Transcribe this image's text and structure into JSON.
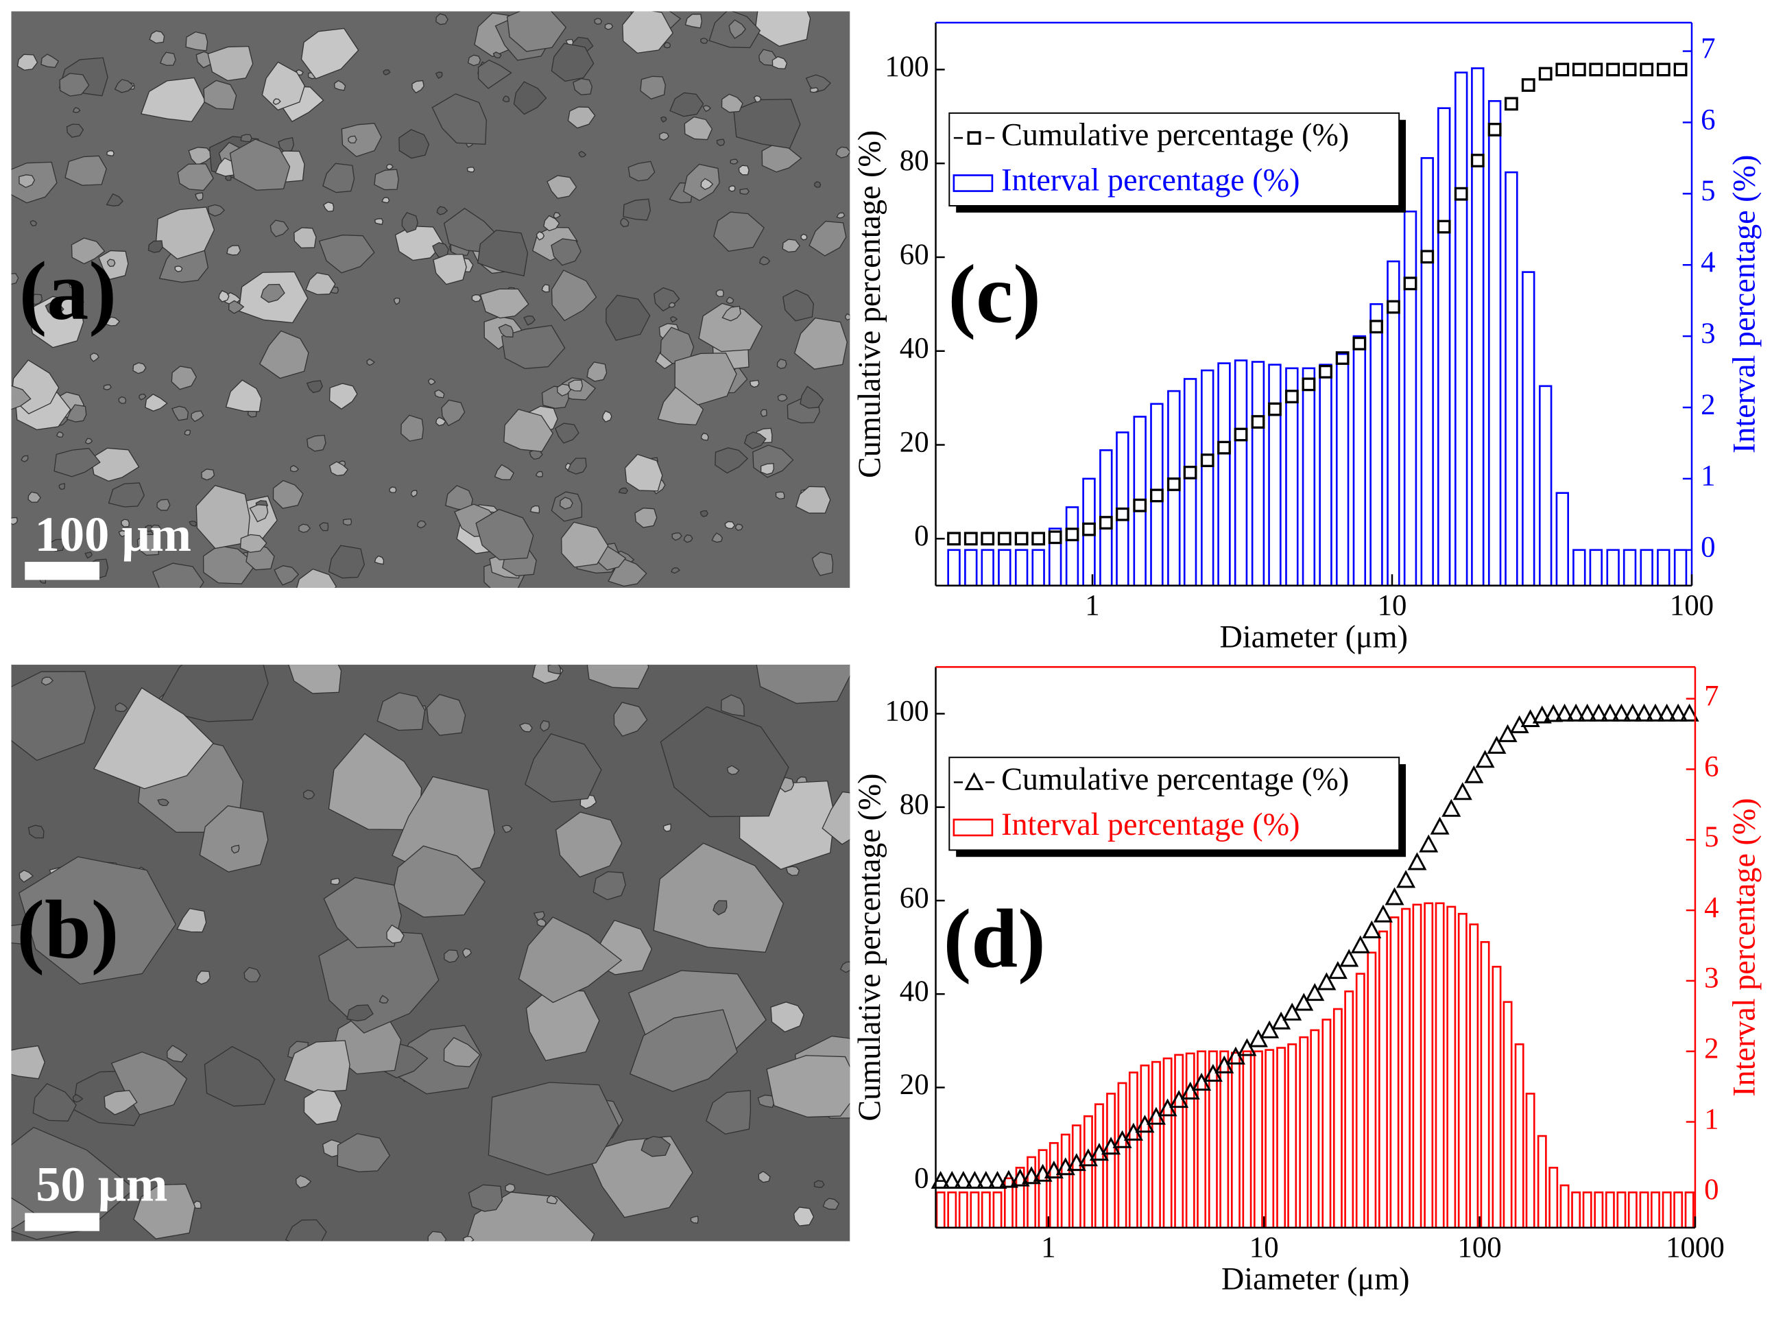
{
  "images": [
    {
      "label": "(a)",
      "scale_bar": "100 μm"
    },
    {
      "label": "(b)",
      "scale_bar": "50 μm"
    }
  ],
  "chart_data": [
    {
      "type": "bar",
      "annotations": [
        "(c)"
      ],
      "xlabel": "Diameter (μm)",
      "ylabel": "Cumulative percentage (%)",
      "y2label": "Interval percentage (%)",
      "xscale": "log",
      "xlim": [
        0.3,
        100
      ],
      "xticks": [
        1,
        10,
        100
      ],
      "ylim": [
        -10,
        110
      ],
      "yticks": [
        0,
        20,
        40,
        60,
        80,
        100
      ],
      "y2lim": [
        -0.5,
        7.4
      ],
      "y2ticks": [
        0,
        1,
        2,
        3,
        4,
        5,
        6,
        7
      ],
      "grid": false,
      "legend": "upper left",
      "x": [
        0.345,
        0.393,
        0.447,
        0.509,
        0.58,
        0.66,
        0.751,
        0.856,
        0.974,
        1.11,
        1.26,
        1.44,
        1.64,
        1.87,
        2.12,
        2.42,
        2.75,
        3.13,
        3.57,
        4.06,
        4.63,
        5.27,
        6.0,
        6.83,
        7.78,
        8.86,
        10.1,
        11.5,
        13.1,
        14.9,
        17.0,
        19.3,
        22.0,
        25.0,
        28.5,
        32.5,
        37.0,
        42.1,
        47.9,
        54.6,
        62.1,
        70.7,
        80.5,
        91.7
      ],
      "series": [
        {
          "name": "Cumulative percentage (%)",
          "type": "scatter",
          "marker": "square",
          "color": "#000000",
          "values": [
            0,
            0,
            0,
            0,
            0,
            0,
            0.3,
            0.9,
            2.0,
            3.4,
            5.2,
            7.1,
            9.2,
            11.6,
            14.1,
            16.7,
            19.4,
            22.2,
            24.9,
            27.6,
            30.3,
            32.9,
            35.6,
            38.5,
            41.6,
            45.2,
            49.4,
            54.4,
            60.1,
            66.5,
            73.5,
            80.6,
            87.2,
            92.7,
            96.7,
            99.1,
            100,
            100,
            100,
            100,
            100,
            100,
            100,
            100
          ]
        },
        {
          "name": "Interval percentage (%)",
          "type": "bar",
          "axis": "y2",
          "color": "#0000ff",
          "values": [
            0,
            0,
            0,
            0,
            0,
            0,
            0.3,
            0.6,
            1.0,
            1.4,
            1.65,
            1.87,
            2.05,
            2.23,
            2.4,
            2.52,
            2.62,
            2.66,
            2.64,
            2.6,
            2.55,
            2.55,
            2.6,
            2.75,
            3.0,
            3.45,
            4.05,
            4.75,
            5.5,
            6.2,
            6.7,
            6.76,
            6.3,
            5.3,
            3.9,
            2.3,
            0.8,
            0,
            0,
            0,
            0,
            0,
            0,
            0
          ]
        }
      ]
    },
    {
      "type": "bar",
      "annotations": [
        "(d)"
      ],
      "xlabel": "Diameter (μm)",
      "ylabel": "Cumulative percentage (%)",
      "y2label": "Interval percentage (%)",
      "xscale": "log",
      "xlim": [
        0.3,
        1000
      ],
      "xticks": [
        1,
        10,
        100,
        1000
      ],
      "ylim": [
        -10,
        110
      ],
      "yticks": [
        0,
        20,
        40,
        60,
        80,
        100
      ],
      "y2lim": [
        -0.5,
        7.45
      ],
      "y2ticks": [
        0,
        1,
        2,
        3,
        4,
        5,
        6,
        7
      ],
      "grid": false,
      "legend": "upper left",
      "x": [
        0.316,
        0.357,
        0.403,
        0.455,
        0.513,
        0.58,
        0.654,
        0.739,
        0.834,
        0.941,
        1.06,
        1.2,
        1.35,
        1.53,
        1.72,
        1.95,
        2.2,
        2.48,
        2.8,
        3.16,
        3.57,
        4.03,
        4.55,
        5.13,
        5.8,
        6.54,
        7.39,
        8.34,
        9.41,
        10.6,
        12.0,
        13.5,
        15.3,
        17.2,
        19.5,
        22.0,
        24.8,
        28.0,
        31.6,
        35.7,
        40.3,
        45.5,
        51.3,
        58.0,
        65.4,
        73.9,
        83.4,
        94.1,
        106,
        120,
        135,
        153,
        172,
        195,
        220,
        248,
        280,
        316,
        357,
        403,
        455,
        513,
        580,
        654,
        739,
        834,
        941
      ],
      "series": [
        {
          "name": "Cumulative percentage (%)",
          "type": "scatter",
          "marker": "triangle",
          "color": "#000000",
          "values": [
            0,
            0,
            0,
            0,
            0,
            0,
            0.2,
            0.5,
            1.0,
            1.5,
            2.2,
            2.9,
            3.8,
            4.8,
            6.0,
            7.3,
            8.7,
            10.3,
            12.0,
            13.7,
            15.5,
            17.3,
            19.1,
            21.0,
            22.9,
            24.7,
            26.6,
            28.4,
            30.3,
            32.2,
            34.1,
            36.0,
            38.1,
            40.2,
            42.5,
            44.9,
            47.5,
            50.4,
            53.6,
            57.0,
            60.7,
            64.4,
            68.2,
            72.0,
            75.8,
            79.6,
            83.2,
            86.8,
            90.1,
            93.1,
            95.6,
            97.5,
            98.8,
            99.6,
            99.9,
            100,
            100,
            100,
            100,
            100,
            100,
            100,
            100,
            100,
            100,
            100,
            100
          ]
        },
        {
          "name": "Interval percentage (%)",
          "type": "bar",
          "axis": "y2",
          "color": "#ff0000",
          "values": [
            0,
            0,
            0,
            0,
            0,
            0,
            0.2,
            0.35,
            0.5,
            0.6,
            0.7,
            0.82,
            0.95,
            1.08,
            1.25,
            1.4,
            1.55,
            1.7,
            1.8,
            1.85,
            1.9,
            1.95,
            1.97,
            2.0,
            2.0,
            2.0,
            1.98,
            2.0,
            2.0,
            2.02,
            2.05,
            2.1,
            2.2,
            2.3,
            2.45,
            2.6,
            2.85,
            3.1,
            3.4,
            3.7,
            3.9,
            4.02,
            4.08,
            4.1,
            4.1,
            4.05,
            3.95,
            3.8,
            3.55,
            3.2,
            2.7,
            2.1,
            1.4,
            0.8,
            0.35,
            0.1,
            0,
            0,
            0,
            0,
            0,
            0,
            0,
            0,
            0,
            0,
            0
          ]
        }
      ]
    }
  ]
}
